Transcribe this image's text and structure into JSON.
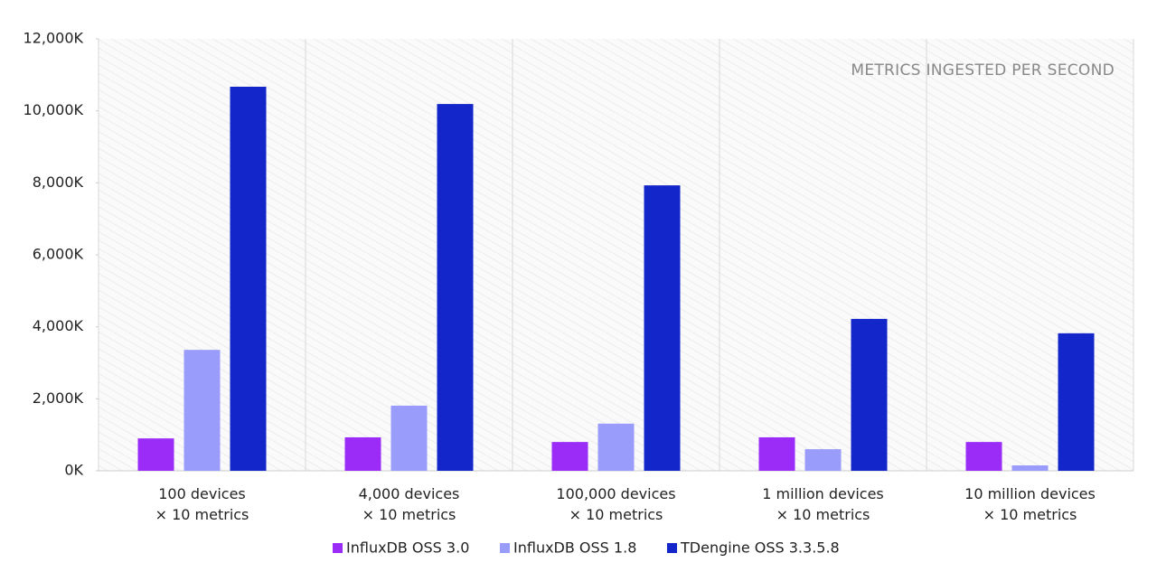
{
  "chart_data": {
    "type": "bar",
    "annotation": "METRICS INGESTED PER SECOND",
    "categories": [
      [
        "100 devices",
        "× 10 metrics"
      ],
      [
        "4,000 devices",
        "× 10 metrics"
      ],
      [
        "100,000 devices",
        "× 10 metrics"
      ],
      [
        "1 million devices",
        "× 10 metrics"
      ],
      [
        "10 million devices",
        "× 10 metrics"
      ]
    ],
    "series": [
      {
        "name": "InfluxDB OSS 3.0",
        "color": "#9b2cf7",
        "values": [
          900,
          930,
          800,
          930,
          800
        ]
      },
      {
        "name": "InfluxDB OSS 1.8",
        "color": "#9a9cfb",
        "values": [
          3360,
          1810,
          1310,
          600,
          150
        ]
      },
      {
        "name": "TDengine OSS 3.3.5.8",
        "color": "#1226c9",
        "values": [
          10670,
          10190,
          7930,
          4220,
          3820
        ]
      }
    ],
    "ylim": [
      0,
      12000
    ],
    "yticks": [
      {
        "value": 0,
        "label": "0K"
      },
      {
        "value": 2000,
        "label": "2,000K"
      },
      {
        "value": 4000,
        "label": "4,000K"
      },
      {
        "value": 6000,
        "label": "6,000K"
      },
      {
        "value": 8000,
        "label": "8,000K"
      },
      {
        "value": 10000,
        "label": "10,000K"
      },
      {
        "value": 12000,
        "label": "12,000K"
      }
    ],
    "legend": "bottom"
  }
}
